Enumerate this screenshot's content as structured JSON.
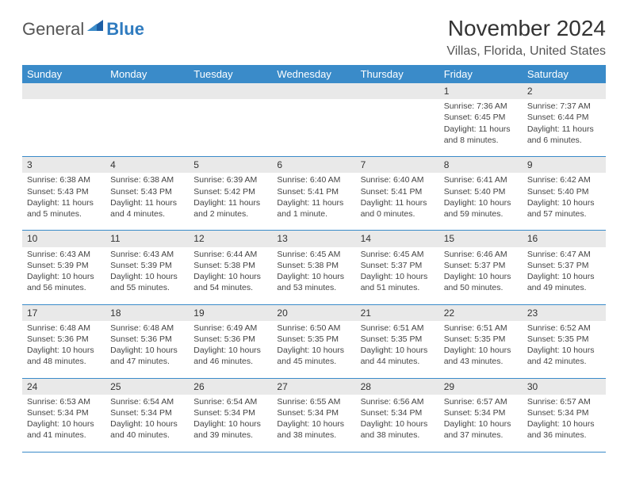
{
  "logo": {
    "word1": "General",
    "word2": "Blue",
    "flag_color": "#1d5fa6"
  },
  "title": "November 2024",
  "location": "Villas, Florida, United States",
  "header_bg": "#3a8bc9",
  "daynum_bg": "#e9e9e9",
  "border_color": "#3a8bc9",
  "day_headers": [
    "Sunday",
    "Monday",
    "Tuesday",
    "Wednesday",
    "Thursday",
    "Friday",
    "Saturday"
  ],
  "weeks": [
    {
      "nums": [
        "",
        "",
        "",
        "",
        "",
        "1",
        "2"
      ],
      "cells": [
        null,
        null,
        null,
        null,
        null,
        {
          "sr": "Sunrise: 7:36 AM",
          "ss": "Sunset: 6:45 PM",
          "d1": "Daylight: 11 hours",
          "d2": "and 8 minutes."
        },
        {
          "sr": "Sunrise: 7:37 AM",
          "ss": "Sunset: 6:44 PM",
          "d1": "Daylight: 11 hours",
          "d2": "and 6 minutes."
        }
      ]
    },
    {
      "nums": [
        "3",
        "4",
        "5",
        "6",
        "7",
        "8",
        "9"
      ],
      "cells": [
        {
          "sr": "Sunrise: 6:38 AM",
          "ss": "Sunset: 5:43 PM",
          "d1": "Daylight: 11 hours",
          "d2": "and 5 minutes."
        },
        {
          "sr": "Sunrise: 6:38 AM",
          "ss": "Sunset: 5:43 PM",
          "d1": "Daylight: 11 hours",
          "d2": "and 4 minutes."
        },
        {
          "sr": "Sunrise: 6:39 AM",
          "ss": "Sunset: 5:42 PM",
          "d1": "Daylight: 11 hours",
          "d2": "and 2 minutes."
        },
        {
          "sr": "Sunrise: 6:40 AM",
          "ss": "Sunset: 5:41 PM",
          "d1": "Daylight: 11 hours",
          "d2": "and 1 minute."
        },
        {
          "sr": "Sunrise: 6:40 AM",
          "ss": "Sunset: 5:41 PM",
          "d1": "Daylight: 11 hours",
          "d2": "and 0 minutes."
        },
        {
          "sr": "Sunrise: 6:41 AM",
          "ss": "Sunset: 5:40 PM",
          "d1": "Daylight: 10 hours",
          "d2": "and 59 minutes."
        },
        {
          "sr": "Sunrise: 6:42 AM",
          "ss": "Sunset: 5:40 PM",
          "d1": "Daylight: 10 hours",
          "d2": "and 57 minutes."
        }
      ]
    },
    {
      "nums": [
        "10",
        "11",
        "12",
        "13",
        "14",
        "15",
        "16"
      ],
      "cells": [
        {
          "sr": "Sunrise: 6:43 AM",
          "ss": "Sunset: 5:39 PM",
          "d1": "Daylight: 10 hours",
          "d2": "and 56 minutes."
        },
        {
          "sr": "Sunrise: 6:43 AM",
          "ss": "Sunset: 5:39 PM",
          "d1": "Daylight: 10 hours",
          "d2": "and 55 minutes."
        },
        {
          "sr": "Sunrise: 6:44 AM",
          "ss": "Sunset: 5:38 PM",
          "d1": "Daylight: 10 hours",
          "d2": "and 54 minutes."
        },
        {
          "sr": "Sunrise: 6:45 AM",
          "ss": "Sunset: 5:38 PM",
          "d1": "Daylight: 10 hours",
          "d2": "and 53 minutes."
        },
        {
          "sr": "Sunrise: 6:45 AM",
          "ss": "Sunset: 5:37 PM",
          "d1": "Daylight: 10 hours",
          "d2": "and 51 minutes."
        },
        {
          "sr": "Sunrise: 6:46 AM",
          "ss": "Sunset: 5:37 PM",
          "d1": "Daylight: 10 hours",
          "d2": "and 50 minutes."
        },
        {
          "sr": "Sunrise: 6:47 AM",
          "ss": "Sunset: 5:37 PM",
          "d1": "Daylight: 10 hours",
          "d2": "and 49 minutes."
        }
      ]
    },
    {
      "nums": [
        "17",
        "18",
        "19",
        "20",
        "21",
        "22",
        "23"
      ],
      "cells": [
        {
          "sr": "Sunrise: 6:48 AM",
          "ss": "Sunset: 5:36 PM",
          "d1": "Daylight: 10 hours",
          "d2": "and 48 minutes."
        },
        {
          "sr": "Sunrise: 6:48 AM",
          "ss": "Sunset: 5:36 PM",
          "d1": "Daylight: 10 hours",
          "d2": "and 47 minutes."
        },
        {
          "sr": "Sunrise: 6:49 AM",
          "ss": "Sunset: 5:36 PM",
          "d1": "Daylight: 10 hours",
          "d2": "and 46 minutes."
        },
        {
          "sr": "Sunrise: 6:50 AM",
          "ss": "Sunset: 5:35 PM",
          "d1": "Daylight: 10 hours",
          "d2": "and 45 minutes."
        },
        {
          "sr": "Sunrise: 6:51 AM",
          "ss": "Sunset: 5:35 PM",
          "d1": "Daylight: 10 hours",
          "d2": "and 44 minutes."
        },
        {
          "sr": "Sunrise: 6:51 AM",
          "ss": "Sunset: 5:35 PM",
          "d1": "Daylight: 10 hours",
          "d2": "and 43 minutes."
        },
        {
          "sr": "Sunrise: 6:52 AM",
          "ss": "Sunset: 5:35 PM",
          "d1": "Daylight: 10 hours",
          "d2": "and 42 minutes."
        }
      ]
    },
    {
      "nums": [
        "24",
        "25",
        "26",
        "27",
        "28",
        "29",
        "30"
      ],
      "cells": [
        {
          "sr": "Sunrise: 6:53 AM",
          "ss": "Sunset: 5:34 PM",
          "d1": "Daylight: 10 hours",
          "d2": "and 41 minutes."
        },
        {
          "sr": "Sunrise: 6:54 AM",
          "ss": "Sunset: 5:34 PM",
          "d1": "Daylight: 10 hours",
          "d2": "and 40 minutes."
        },
        {
          "sr": "Sunrise: 6:54 AM",
          "ss": "Sunset: 5:34 PM",
          "d1": "Daylight: 10 hours",
          "d2": "and 39 minutes."
        },
        {
          "sr": "Sunrise: 6:55 AM",
          "ss": "Sunset: 5:34 PM",
          "d1": "Daylight: 10 hours",
          "d2": "and 38 minutes."
        },
        {
          "sr": "Sunrise: 6:56 AM",
          "ss": "Sunset: 5:34 PM",
          "d1": "Daylight: 10 hours",
          "d2": "and 38 minutes."
        },
        {
          "sr": "Sunrise: 6:57 AM",
          "ss": "Sunset: 5:34 PM",
          "d1": "Daylight: 10 hours",
          "d2": "and 37 minutes."
        },
        {
          "sr": "Sunrise: 6:57 AM",
          "ss": "Sunset: 5:34 PM",
          "d1": "Daylight: 10 hours",
          "d2": "and 36 minutes."
        }
      ]
    }
  ]
}
